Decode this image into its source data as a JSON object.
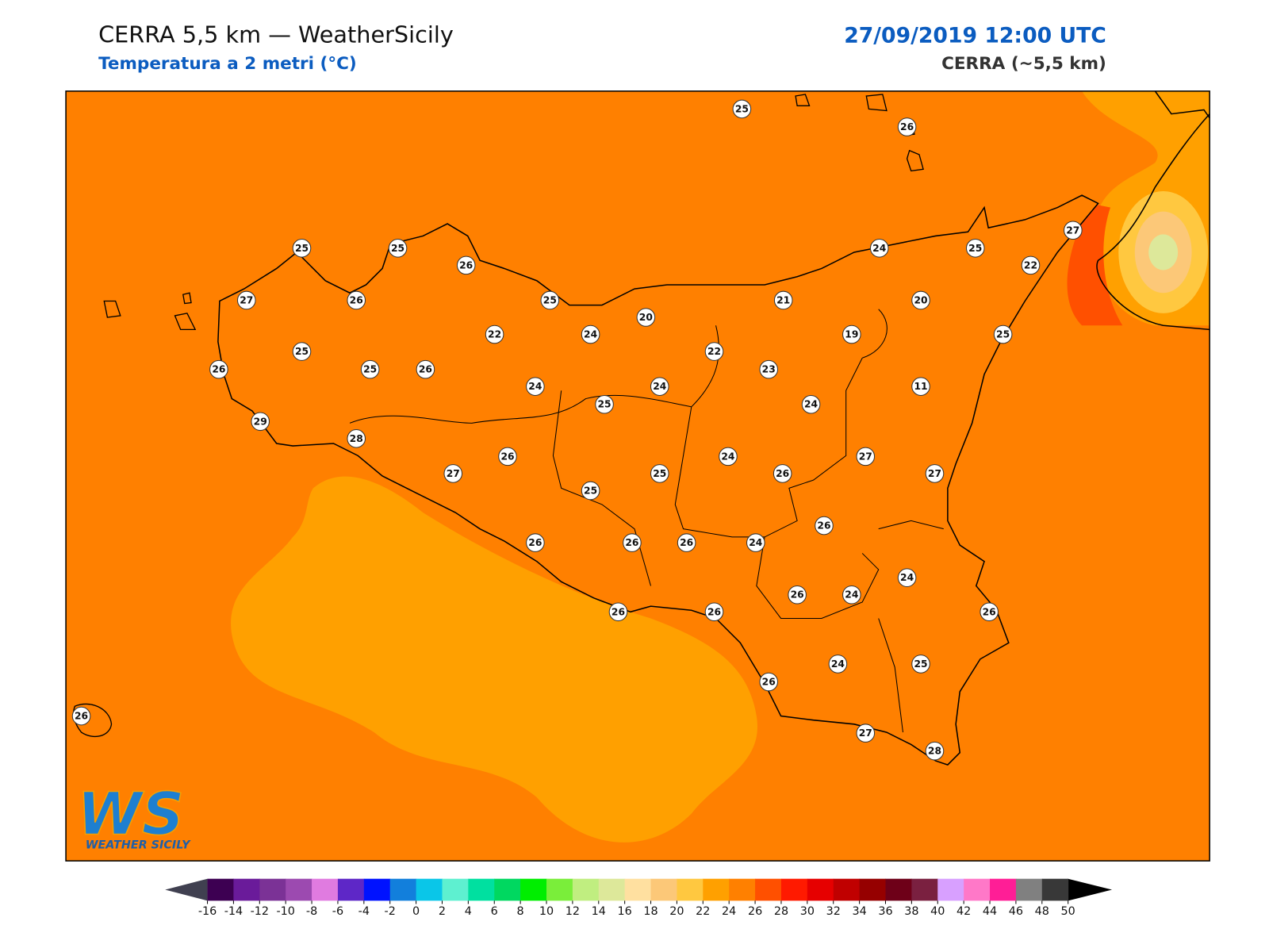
{
  "header": {
    "title": "CERRA 5,5 km — WeatherSicily",
    "subtitle": "Temperatura a 2 metri (°C)",
    "date": "27/09/2019 12:00 UTC",
    "model": "CERRA (~5,5 km)"
  },
  "map": {
    "stations": [
      25,
      26,
      25,
      25,
      26,
      27,
      26,
      25,
      24,
      25,
      27,
      22,
      21,
      20,
      20,
      22,
      24,
      19,
      25,
      25,
      26,
      25,
      26,
      22,
      23,
      24,
      24,
      11,
      25,
      24,
      29,
      28,
      26,
      24,
      27,
      27,
      25,
      26,
      27,
      25,
      26,
      26,
      26,
      26,
      24,
      24,
      26,
      24,
      26,
      26,
      26,
      24,
      25,
      26,
      26,
      27,
      28
    ]
  },
  "logo": {
    "letters": "WS",
    "text": "Weather Sicily"
  },
  "colorbar": {
    "ticks": [
      -16,
      -14,
      -12,
      -10,
      -8,
      -6,
      -4,
      -2,
      0,
      2,
      4,
      6,
      8,
      10,
      12,
      14,
      16,
      18,
      20,
      22,
      24,
      26,
      28,
      30,
      32,
      34,
      36,
      38,
      40,
      42,
      44,
      46,
      48,
      50
    ],
    "colors": [
      "#3d0052",
      "#6a1b9a",
      "#7b3296",
      "#9c4ab0",
      "#e07be0",
      "#5e27c7",
      "#0012ff",
      "#127fdc",
      "#0ac6e8",
      "#5ef0d0",
      "#00e0a0",
      "#00d860",
      "#00ee00",
      "#7aee3a",
      "#c0ee80",
      "#dde89a",
      "#ffe0a0",
      "#fcc878",
      "#ffc840",
      "#ffa000",
      "#ff8000",
      "#ff5000",
      "#ff1a00",
      "#e60000",
      "#c00000",
      "#960000",
      "#6e0018",
      "#7a2040",
      "#d8a0ff",
      "#ff78c8",
      "#ff1e96",
      "#808080",
      "#383838"
    ],
    "under_color": "#404050",
    "over_color": "#000000"
  }
}
